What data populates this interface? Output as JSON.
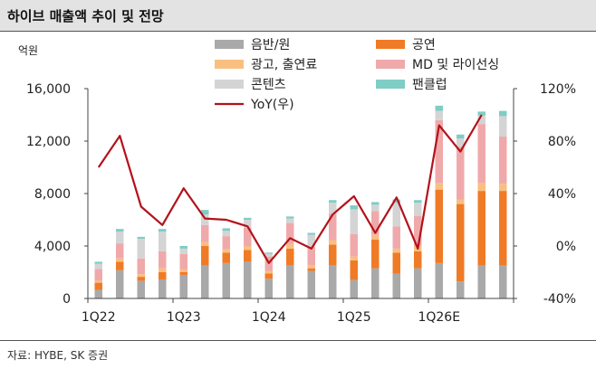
{
  "header": {
    "title": "하이브 매출액 추이 및 전망"
  },
  "footer": {
    "source": "자료: HYBE, SK 증권"
  },
  "colors": {
    "음반/원": "#a9a9a9",
    "공연": "#f07b26",
    "광고, 출연료": "#f9bf80",
    "MD 및 라이선싱": "#f0a9ab",
    "콘텐츠": "#d4d4d4",
    "팬클럽": "#7fcdc4",
    "YoY(우)": "#b3121b"
  },
  "chart_data": {
    "type": "bar",
    "stacked": true,
    "title": "하이브 매출액 추이 및 전망",
    "ylabel": "억원",
    "ylim": [
      0,
      16000
    ],
    "yticks": [
      0,
      4000,
      8000,
      12000,
      16000
    ],
    "ytick_labels": [
      "0",
      "4,000",
      "8,000",
      "12,000",
      "16,000"
    ],
    "y2lim": [
      -40,
      120
    ],
    "y2ticks": [
      -40,
      0,
      40,
      80,
      120
    ],
    "y2tick_labels": [
      "-40%",
      "0%",
      "40%",
      "80%",
      "120%"
    ],
    "categories": [
      "1Q22",
      "2Q22",
      "3Q22",
      "4Q22",
      "1Q23",
      "2Q23",
      "3Q23",
      "4Q23",
      "1Q24",
      "2Q24",
      "3Q24",
      "4Q24",
      "1Q25",
      "2Q25",
      "3Q25",
      "4Q25",
      "1Q26E",
      "2Q26E",
      "3Q26E",
      "4Q26E"
    ],
    "xtick_labels": [
      "1Q22",
      "1Q23",
      "1Q24",
      "1Q25",
      "1Q26E"
    ],
    "xtick_positions": [
      0,
      4,
      8,
      12,
      16
    ],
    "series": [
      {
        "name": "음반/원",
        "values": [
          650,
          2150,
          1350,
          1450,
          1800,
          2500,
          2700,
          2800,
          1500,
          2500,
          2100,
          2500,
          1400,
          2300,
          1900,
          2300,
          2700,
          1300,
          2500,
          2500
        ]
      },
      {
        "name": "공연",
        "values": [
          550,
          650,
          300,
          550,
          200,
          1500,
          800,
          900,
          400,
          1300,
          200,
          1600,
          1500,
          2200,
          1600,
          1300,
          5600,
          5900,
          5700,
          5700
        ]
      },
      {
        "name": "광고, 출연료",
        "values": [
          150,
          250,
          200,
          300,
          200,
          300,
          250,
          300,
          200,
          350,
          250,
          350,
          300,
          350,
          300,
          400,
          500,
          350,
          600,
          550
        ]
      },
      {
        "name": "MD 및 라이선싱",
        "values": [
          900,
          1150,
          1200,
          1300,
          1200,
          1300,
          1000,
          1400,
          1100,
          1600,
          1400,
          2000,
          1700,
          1800,
          1700,
          2300,
          4800,
          4000,
          4500,
          3600
        ]
      },
      {
        "name": "콘텐츠",
        "values": [
          400,
          900,
          1500,
          1500,
          400,
          800,
          400,
          600,
          200,
          350,
          900,
          850,
          1900,
          500,
          1800,
          1000,
          700,
          650,
          650,
          1550
        ]
      },
      {
        "name": "팬클럽",
        "values": [
          150,
          200,
          150,
          200,
          200,
          350,
          200,
          150,
          100,
          150,
          150,
          200,
          300,
          200,
          250,
          200,
          400,
          300,
          300,
          400
        ]
      },
      {
        "name": "YoY(우)",
        "type": "line",
        "axis": "right",
        "values": [
          60,
          84,
          30,
          16,
          44,
          21,
          20,
          15,
          -13,
          6,
          -2,
          24,
          38,
          10,
          37,
          -2,
          92,
          72,
          100,
          null
        ]
      }
    ],
    "legend": [
      {
        "label": "음반/원",
        "shape": "bar",
        "series": "음반/원"
      },
      {
        "label": "공연",
        "shape": "bar",
        "series": "공연"
      },
      {
        "label": "광고, 출연료",
        "shape": "bar",
        "series": "광고, 출연료"
      },
      {
        "label": "MD 및 라이선싱",
        "shape": "bar",
        "series": "MD 및 라이선싱"
      },
      {
        "label": "콘텐츠",
        "shape": "bar",
        "series": "콘텐츠"
      },
      {
        "label": "팬클럽",
        "shape": "bar",
        "series": "팬클럽"
      },
      {
        "label": "YoY(우)",
        "shape": "line",
        "series": "YoY(우)"
      }
    ]
  }
}
